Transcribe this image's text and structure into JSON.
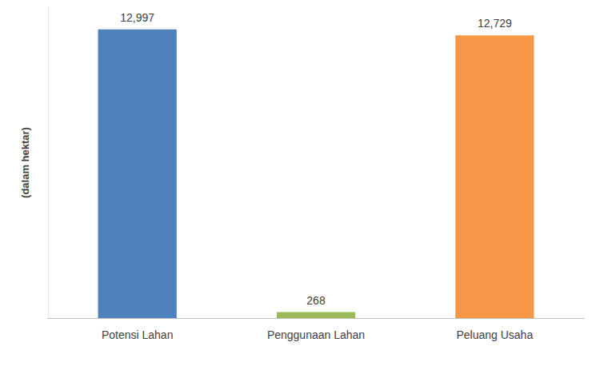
{
  "chart_data": {
    "type": "bar",
    "y_label": "(dalam hektar)",
    "categories": [
      "Potensi Lahan",
      "Penggunaan Lahan",
      "Peluang Usaha"
    ],
    "values": [
      12997,
      268,
      12729
    ],
    "value_labels": [
      "12,997",
      "268",
      "12,729"
    ],
    "colors": [
      "#4f81bd",
      "#9bbb59",
      "#f79646"
    ],
    "ylim": [
      0,
      14000
    ],
    "grid": false,
    "data_labels": true,
    "tick_labels": "x"
  }
}
